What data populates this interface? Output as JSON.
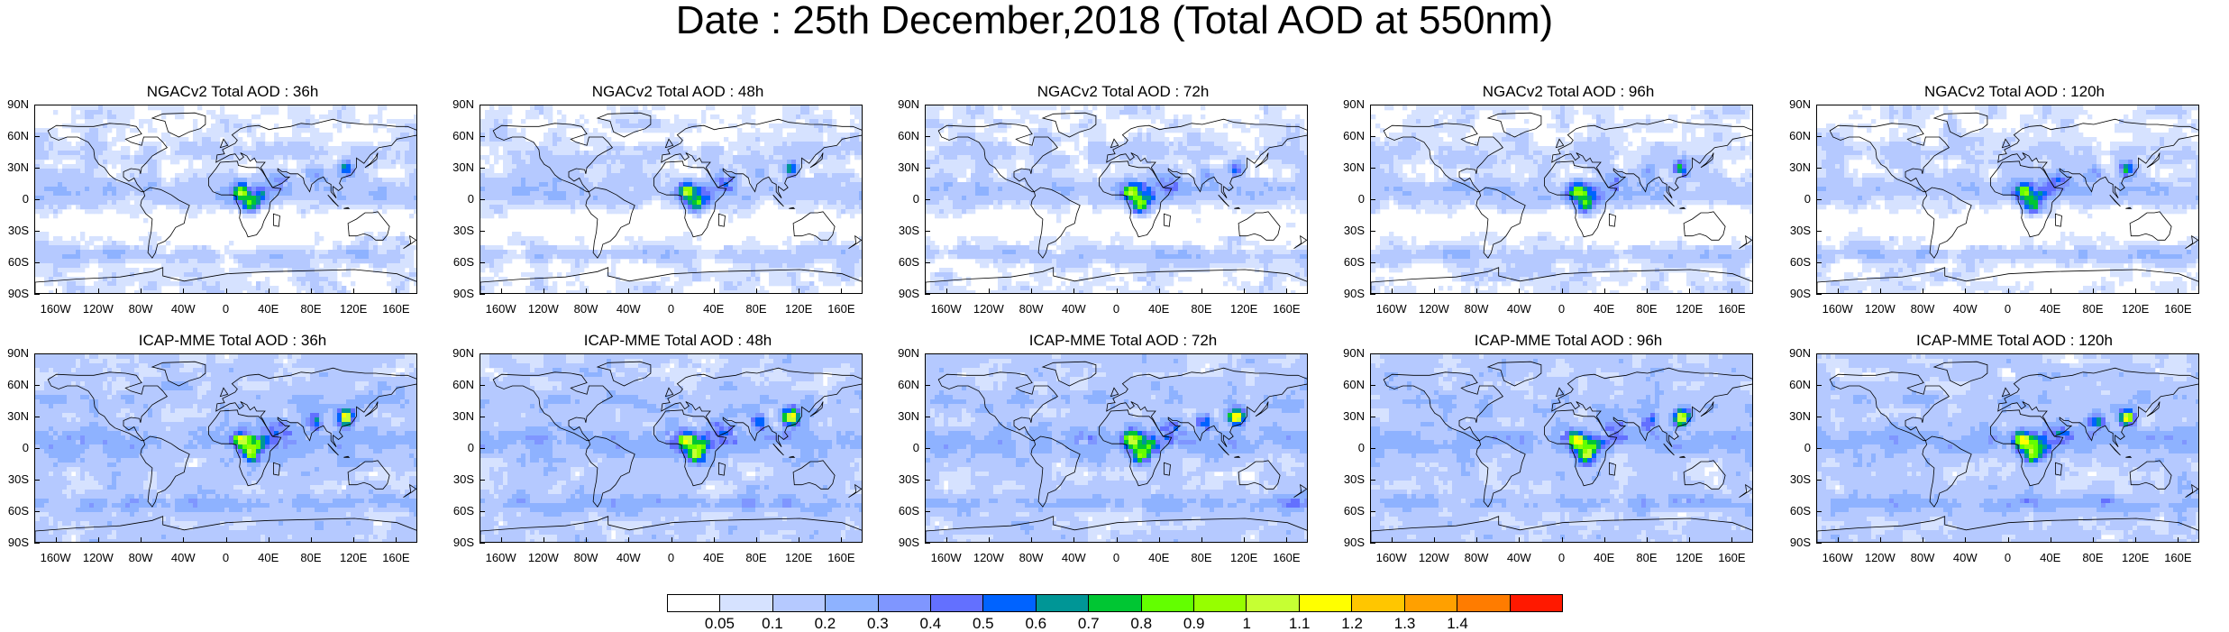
{
  "title": "Date : 25th December,2018 (Total AOD at 550nm)",
  "panels": [
    {
      "title": "NGACv2 Total AOD : 36h",
      "model": "ngac"
    },
    {
      "title": "NGACv2 Total AOD : 48h",
      "model": "ngac"
    },
    {
      "title": "NGACv2 Total AOD : 72h",
      "model": "ngac"
    },
    {
      "title": "NGACv2 Total AOD : 96h",
      "model": "ngac"
    },
    {
      "title": "NGACv2 Total AOD : 120h",
      "model": "ngac"
    },
    {
      "title": "ICAP-MME Total AOD : 36h",
      "model": "icap"
    },
    {
      "title": "ICAP-MME Total AOD : 48h",
      "model": "icap"
    },
    {
      "title": "ICAP-MME Total AOD : 72h",
      "model": "icap"
    },
    {
      "title": "ICAP-MME Total AOD : 96h",
      "model": "icap"
    },
    {
      "title": "ICAP-MME Total AOD : 120h",
      "model": "icap"
    }
  ],
  "lat_labels": [
    "90N",
    "60N",
    "30N",
    "0",
    "30S",
    "60S",
    "90S"
  ],
  "lon_labels": [
    "160W",
    "120W",
    "80W",
    "40W",
    "0",
    "40E",
    "80E",
    "120E",
    "160E"
  ],
  "colorbar": {
    "labels": [
      "0.05",
      "0.1",
      "0.2",
      "0.3",
      "0.4",
      "0.5",
      "0.6",
      "0.7",
      "0.8",
      "0.9",
      "1",
      "1.1",
      "1.2",
      "1.3",
      "1.4"
    ],
    "colors": [
      "#ffffff",
      "#d6e2ff",
      "#b5c9ff",
      "#8eb2ff",
      "#7f96ff",
      "#6370ff",
      "#0063ff",
      "#009696",
      "#00c633",
      "#63ff00",
      "#96ff00",
      "#c6ff33",
      "#ffff00",
      "#ffc600",
      "#ffa000",
      "#ff7c00",
      "#ff1900"
    ]
  }
}
